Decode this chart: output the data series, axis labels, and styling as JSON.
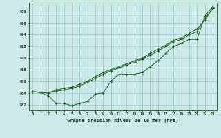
{
  "title": "Graphe pression niveau de la mer (hPa)",
  "background_color": "#cce8e8",
  "grid_color": "#99cccc",
  "line_color": "#2d6e2d",
  "xlim": [
    -0.5,
    23.5
  ],
  "ylim": [
    981.0,
    999.5
  ],
  "yticks": [
    982,
    984,
    986,
    988,
    990,
    992,
    994,
    996,
    998
  ],
  "xticks": [
    0,
    1,
    2,
    3,
    4,
    5,
    6,
    7,
    8,
    9,
    10,
    11,
    12,
    13,
    14,
    15,
    16,
    17,
    18,
    19,
    20,
    21,
    22,
    23
  ],
  "series": [
    [
      984.2,
      984.1,
      983.5,
      982.2,
      982.2,
      981.8,
      982.2,
      982.5,
      983.8,
      984.0,
      986.0,
      987.2,
      987.2,
      987.2,
      987.5,
      988.5,
      989.5,
      990.8,
      992.0,
      992.5,
      993.2,
      993.2,
      997.2,
      998.8
    ],
    [
      984.2,
      984.1,
      984.0,
      984.5,
      984.8,
      985.0,
      985.5,
      986.0,
      986.8,
      987.5,
      988.0,
      988.5,
      989.0,
      989.5,
      990.0,
      990.8,
      991.5,
      992.2,
      993.0,
      993.5,
      994.2,
      995.0,
      996.5,
      998.5
    ],
    [
      984.2,
      984.1,
      984.0,
      984.3,
      984.5,
      984.8,
      985.2,
      985.8,
      986.5,
      987.2,
      987.8,
      988.3,
      988.8,
      989.3,
      989.8,
      990.5,
      991.2,
      992.0,
      992.8,
      993.2,
      994.0,
      994.5,
      996.8,
      998.5
    ]
  ]
}
